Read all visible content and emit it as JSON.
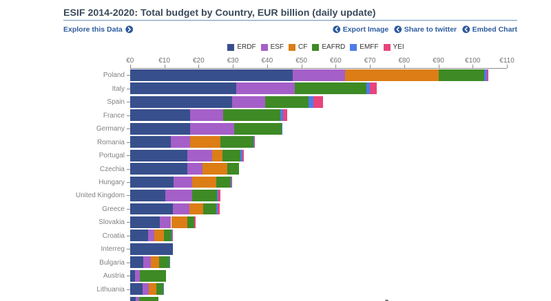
{
  "header": {
    "title": "ESIF 2014-2020: Total budget by Country, EUR billion (daily update)",
    "explore_link": "Explore this Data",
    "actions": [
      {
        "label": "Export Image"
      },
      {
        "label": "Share to twitter"
      },
      {
        "label": "Embed Chart"
      }
    ]
  },
  "colors": {
    "title": "#3a4a5a",
    "link": "#2d5b9e",
    "rule": "#6a92ba",
    "axis": "#8b8b8b",
    "tick_label": "#737373",
    "category_label": "#7d7d7d"
  },
  "chart_data": {
    "type": "bar",
    "orientation": "horizontal",
    "stacked": true,
    "title": "ESIF 2014-2020: Total budget by Country, EUR billion (daily update)",
    "unit": "EUR billion",
    "xlim": [
      0,
      110
    ],
    "x_ticks": [
      0,
      10,
      20,
      30,
      40,
      50,
      60,
      70,
      80,
      90,
      100,
      110
    ],
    "x_tick_labels": [
      "€0",
      "€10",
      "€20",
      "€30",
      "€40",
      "€50",
      "€60",
      "€70",
      "€80",
      "€90",
      "€100",
      "€110"
    ],
    "grid": false,
    "legend_position": "top",
    "categories": [
      "Poland",
      "Italy",
      "Spain",
      "France",
      "Germany",
      "Romania",
      "Portugal",
      "Czechia",
      "Hungary",
      "United Kingdom",
      "Greece",
      "Slovakia",
      "Croatia",
      "Interreg",
      "Bulgaria",
      "Austria",
      "Lithuania",
      ""
    ],
    "series": [
      {
        "name": "ERDF",
        "color": "#374f8c",
        "values": [
          47.4,
          30.9,
          29.7,
          17.6,
          17.6,
          11.8,
          16.8,
          16.8,
          12.7,
          10.2,
          12.6,
          8.7,
          5.3,
          12.6,
          3.9,
          1.4,
          3.7,
          1.7
        ]
      },
      {
        "name": "ESF",
        "color": "#a55fc8",
        "values": [
          15.4,
          17.2,
          9.8,
          9.6,
          12.7,
          5.8,
          7.2,
          4.3,
          5.4,
          7.9,
          4.8,
          3.3,
          1.8,
          0,
          2.1,
          1.4,
          1.8,
          0.9
        ]
      },
      {
        "name": "CF",
        "color": "#dc7d15",
        "values": [
          27.2,
          0,
          0,
          0,
          0,
          8.7,
          3.0,
          7.3,
          7.1,
          0,
          4.0,
          4.7,
          2.7,
          0,
          2.5,
          0,
          2.1,
          0
        ]
      },
      {
        "name": "EAFRD",
        "color": "#3e8a25",
        "values": [
          13.4,
          20.9,
          12.6,
          16.6,
          13.9,
          9.8,
          5.2,
          3.5,
          4.2,
          7.2,
          3.7,
          2.1,
          2.3,
          0,
          2.9,
          7.7,
          2.1,
          5.65
        ]
      },
      {
        "name": "EMFF",
        "color": "#4f7ce9",
        "values": [
          0.8,
          0.9,
          1.5,
          0.8,
          0.35,
          0.2,
          0.6,
          0,
          0.1,
          0.5,
          0.5,
          0,
          0.3,
          0,
          0.25,
          0,
          0.15,
          0
        ]
      },
      {
        "name": "YEI",
        "color": "#e8447e",
        "values": [
          0.4,
          2.2,
          2.8,
          1.2,
          0,
          0.2,
          0.4,
          0,
          0.1,
          0.5,
          0.6,
          0.3,
          0.2,
          0,
          0,
          0,
          0,
          0
        ]
      }
    ]
  }
}
